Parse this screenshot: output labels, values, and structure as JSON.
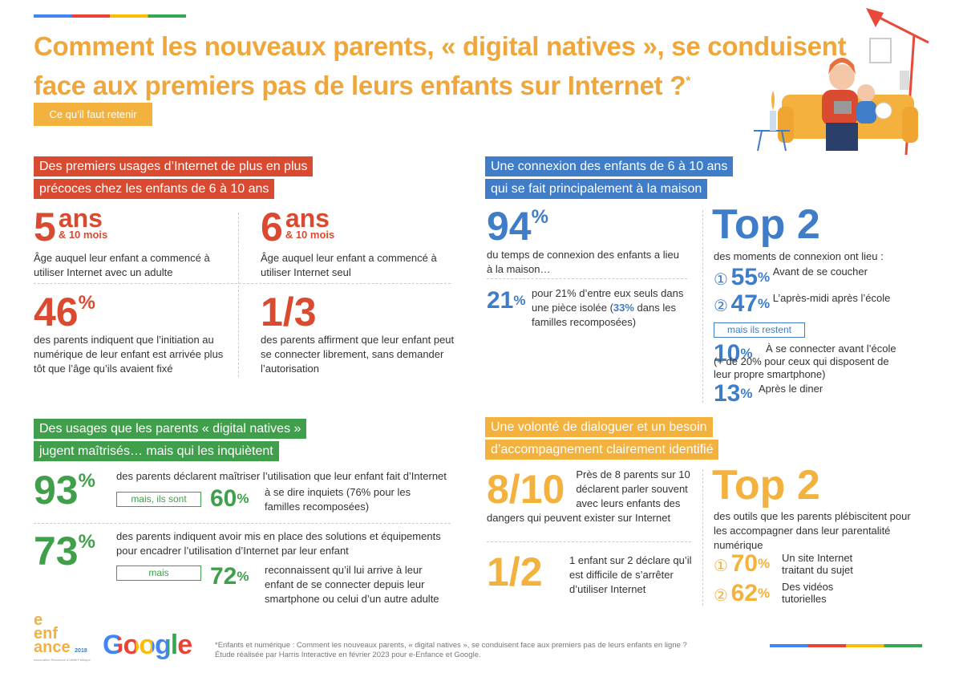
{
  "header": {
    "title_line1": "Comment les nouveaux parents, « digital natives », se conduisent",
    "title_line2": "face aux premiers pas de leurs enfants sur Internet ?",
    "title_mark": "*",
    "tag": "Ce qu’il faut retenir"
  },
  "s1": {
    "heading": [
      "Des premiers usages d’Internet de plus en plus",
      "précoces chez les enfants de 6 à 10 ans"
    ],
    "stats": [
      {
        "number": "5",
        "unit": "ans",
        "sub": "& 10 mois",
        "text": "Âge auquel leur enfant a commencé à utiliser Internet avec un adulte"
      },
      {
        "number": "6",
        "unit": "ans",
        "sub": "& 10 mois",
        "text": "Âge auquel leur enfant a commencé à utiliser Internet seul"
      },
      {
        "number": "46",
        "unit": "%",
        "text": "des parents indiquent que l’initiation au numérique de leur enfant est arrivée plus tôt que l’âge qu’ils avaient fixé"
      },
      {
        "number": "1/3",
        "text": "des parents affirment que leur enfant peut se connecter librement, sans demander l’autorisation"
      }
    ]
  },
  "s2": {
    "heading": [
      "Une connexion des enfants de 6 à 10 ans",
      "qui se fait principalement à la maison"
    ],
    "main": {
      "number": "94",
      "unit": "%",
      "text": "du temps de connexion des enfants a lieu à la maison…"
    },
    "isolated": {
      "number": "21",
      "unit": "%",
      "text_before": "pour 21% d’entre eux seuls dans une pièce isolée (",
      "highlight": "33%",
      "text_after": " dans les familles recomposées)"
    },
    "top": {
      "title": "Top 2",
      "text": "des moments de connexion ont lieu :",
      "items": [
        {
          "rank": "①",
          "number": "55",
          "unit": "%",
          "text": "Avant de se coucher"
        },
        {
          "rank": "②",
          "number": "47",
          "unit": "%",
          "text": "L’après-midi après l’école"
        }
      ],
      "box": "mais ils restent",
      "extra": [
        {
          "number": "10",
          "unit": "%",
          "text": "À se connecter avant l’école (+ de 20% pour ceux qui disposent de leur propre smartphone)"
        },
        {
          "number": "13",
          "unit": "%",
          "text": "Après le diner"
        }
      ]
    }
  },
  "s3": {
    "heading": [
      "Des usages que les parents « digital natives »",
      "jugent maîtrisés… mais qui les inquiètent"
    ],
    "blocks": [
      {
        "number": "93",
        "unit": "%",
        "text": "des parents déclarent maîtriser l’utilisation que leur enfant fait d’Internet",
        "box": "mais, ils sont",
        "sub_number": "60",
        "sub_unit": "%",
        "sub_text": "à se dire inquiets (76% pour les familles recomposées)"
      },
      {
        "number": "73",
        "unit": "%",
        "text": "des parents indiquent avoir mis en place des solutions et équipements pour encadrer l’utilisation d’Internet par leur enfant",
        "box": "mais",
        "sub_number": "72",
        "sub_unit": "%",
        "sub_text": "reconnaissent qu’il lui arrive à leur enfant de se connecter depuis leur smartphone ou celui d’un autre adulte"
      }
    ]
  },
  "s4": {
    "heading": [
      "Une volonté de dialoguer et un besoin",
      "d’accompagnement clairement identifié"
    ],
    "stats": [
      {
        "number": "8/10",
        "text": "Près de 8 parents sur 10 déclarent parler souvent avec leurs enfants des dangers qui peuvent exister sur Internet"
      },
      {
        "number": "1/2",
        "text": "1 enfant sur 2 déclare qu’il est difficile de s’arrêter d’utiliser Internet"
      }
    ],
    "top": {
      "title": "Top 2",
      "text": "des outils que les parents plébiscitent pour les accompagner dans leur parentalité numérique",
      "items": [
        {
          "rank": "①",
          "number": "70",
          "unit": "%",
          "text": "Un site Internet traitant du sujet"
        },
        {
          "rank": "②",
          "number": "62",
          "unit": "%",
          "text": "Des vidéos tutorielles"
        }
      ]
    }
  },
  "footer": {
    "logo": {
      "e": "e",
      "line1": "enf",
      "line2": "ance",
      "year": "2018",
      "caption": "Association Reconnue d’Utilité Publique"
    },
    "google": "Google",
    "note_line1": "*Enfants et numérique : Comment les nouveaux parents, « digital natives », se conduisent face aux premiers pas de leurs enfants en ligne ?",
    "note_line2": "Étude réalisée par Harris Interactive en février 2023 pour e-Enfance et Google."
  }
}
